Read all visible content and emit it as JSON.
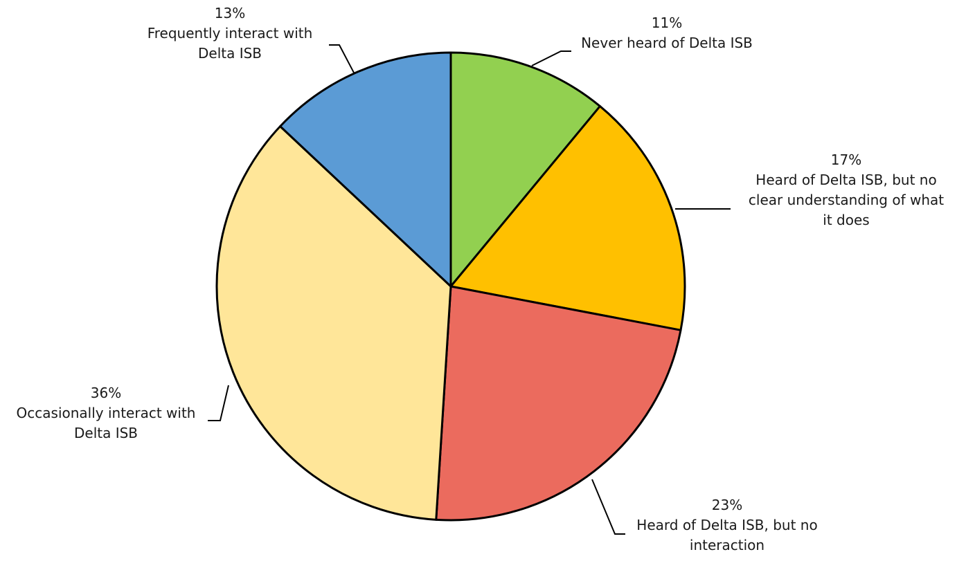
{
  "chart_data": {
    "type": "pie",
    "start_angle_deg": 0,
    "direction": "clockwise",
    "slices": [
      {
        "value": 11,
        "percent_label": "11%",
        "category_lines": [
          "Never heard of Delta ISB"
        ],
        "color": "#92d050"
      },
      {
        "value": 17,
        "percent_label": "17%",
        "category_lines": [
          "Heard of Delta ISB, but no",
          "clear understanding of what",
          "it does"
        ],
        "color": "#ffc000"
      },
      {
        "value": 23,
        "percent_label": "23%",
        "category_lines": [
          "Heard of Delta ISB, but no",
          "interaction"
        ],
        "color": "#eb6b5e"
      },
      {
        "value": 36,
        "percent_label": "36%",
        "category_lines": [
          "Occasionally interact with",
          "Delta ISB"
        ],
        "color": "#ffe699"
      },
      {
        "value": 13,
        "percent_label": "13%",
        "category_lines": [
          "Frequently interact with",
          "Delta ISB"
        ],
        "color": "#5b9bd5"
      }
    ]
  }
}
